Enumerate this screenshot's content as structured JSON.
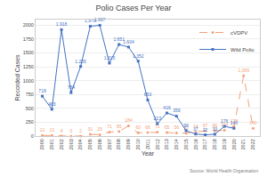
{
  "chart_data": {
    "type": "line",
    "title": "Polio Cases Per Year",
    "xlabel": "Year",
    "ylabel": "Recorded Cases",
    "annotations": [
      "Source: World Health Organisation"
    ],
    "x": [
      2000,
      2001,
      2002,
      2003,
      2004,
      2005,
      2006,
      2007,
      2008,
      2009,
      2010,
      2011,
      2012,
      2013,
      2014,
      2015,
      2016,
      2017,
      2018,
      2019,
      2020,
      2021,
      2022
    ],
    "xlim": [
      1999.3,
      2022.7
    ],
    "xticks": [
      2000,
      2001,
      2002,
      2003,
      2004,
      2005,
      2006,
      2007,
      2008,
      2009,
      2010,
      2011,
      2012,
      2013,
      2014,
      2015,
      2016,
      2017,
      2018,
      2019,
      2020,
      2021,
      2022
    ],
    "ylim": [
      0,
      2100
    ],
    "yticks": [
      0,
      250,
      500,
      750,
      1000,
      1250,
      1500,
      1750,
      2000
    ],
    "grid": true,
    "legend": "upper right",
    "data_labels": true,
    "series": [
      {
        "name": "cVDPV",
        "color": "#f4a07a",
        "marker": "circle",
        "line_style": "dashed",
        "values": [
          12,
          13,
          4,
          0,
          2,
          31,
          25,
          71,
          85,
          184,
          60,
          66,
          71,
          65,
          56,
          52,
          74,
          97,
          96,
          104,
          178,
          1089,
          140
        ],
        "value_labels": [
          "12",
          "13",
          "4",
          "0",
          "2",
          "31",
          "25",
          "71",
          "85",
          "184",
          "60",
          "66",
          "71",
          "65",
          "56",
          "52",
          "74",
          "97",
          "96",
          "104",
          "178",
          "1,089",
          "140"
        ]
      },
      {
        "name": "Wild Polio",
        "color": "#4472c4",
        "marker": "square",
        "line_style": "solid",
        "values": [
          719,
          483,
          1918,
          784,
          1255,
          1979,
          1997,
          1315,
          1651,
          1604,
          1352,
          650,
          223,
          416,
          359,
          98,
          37,
          22,
          33,
          176,
          140,
          null,
          null
        ],
        "value_labels": [
          "719",
          "483",
          "1,918",
          "784",
          "1,255",
          "1,979",
          "1,997",
          "1,315",
          "1,651",
          "1,604",
          "1,352",
          "650",
          "223",
          "416",
          "359",
          "98",
          "37",
          "22",
          "33",
          "176",
          "140",
          null,
          null
        ]
      }
    ]
  }
}
